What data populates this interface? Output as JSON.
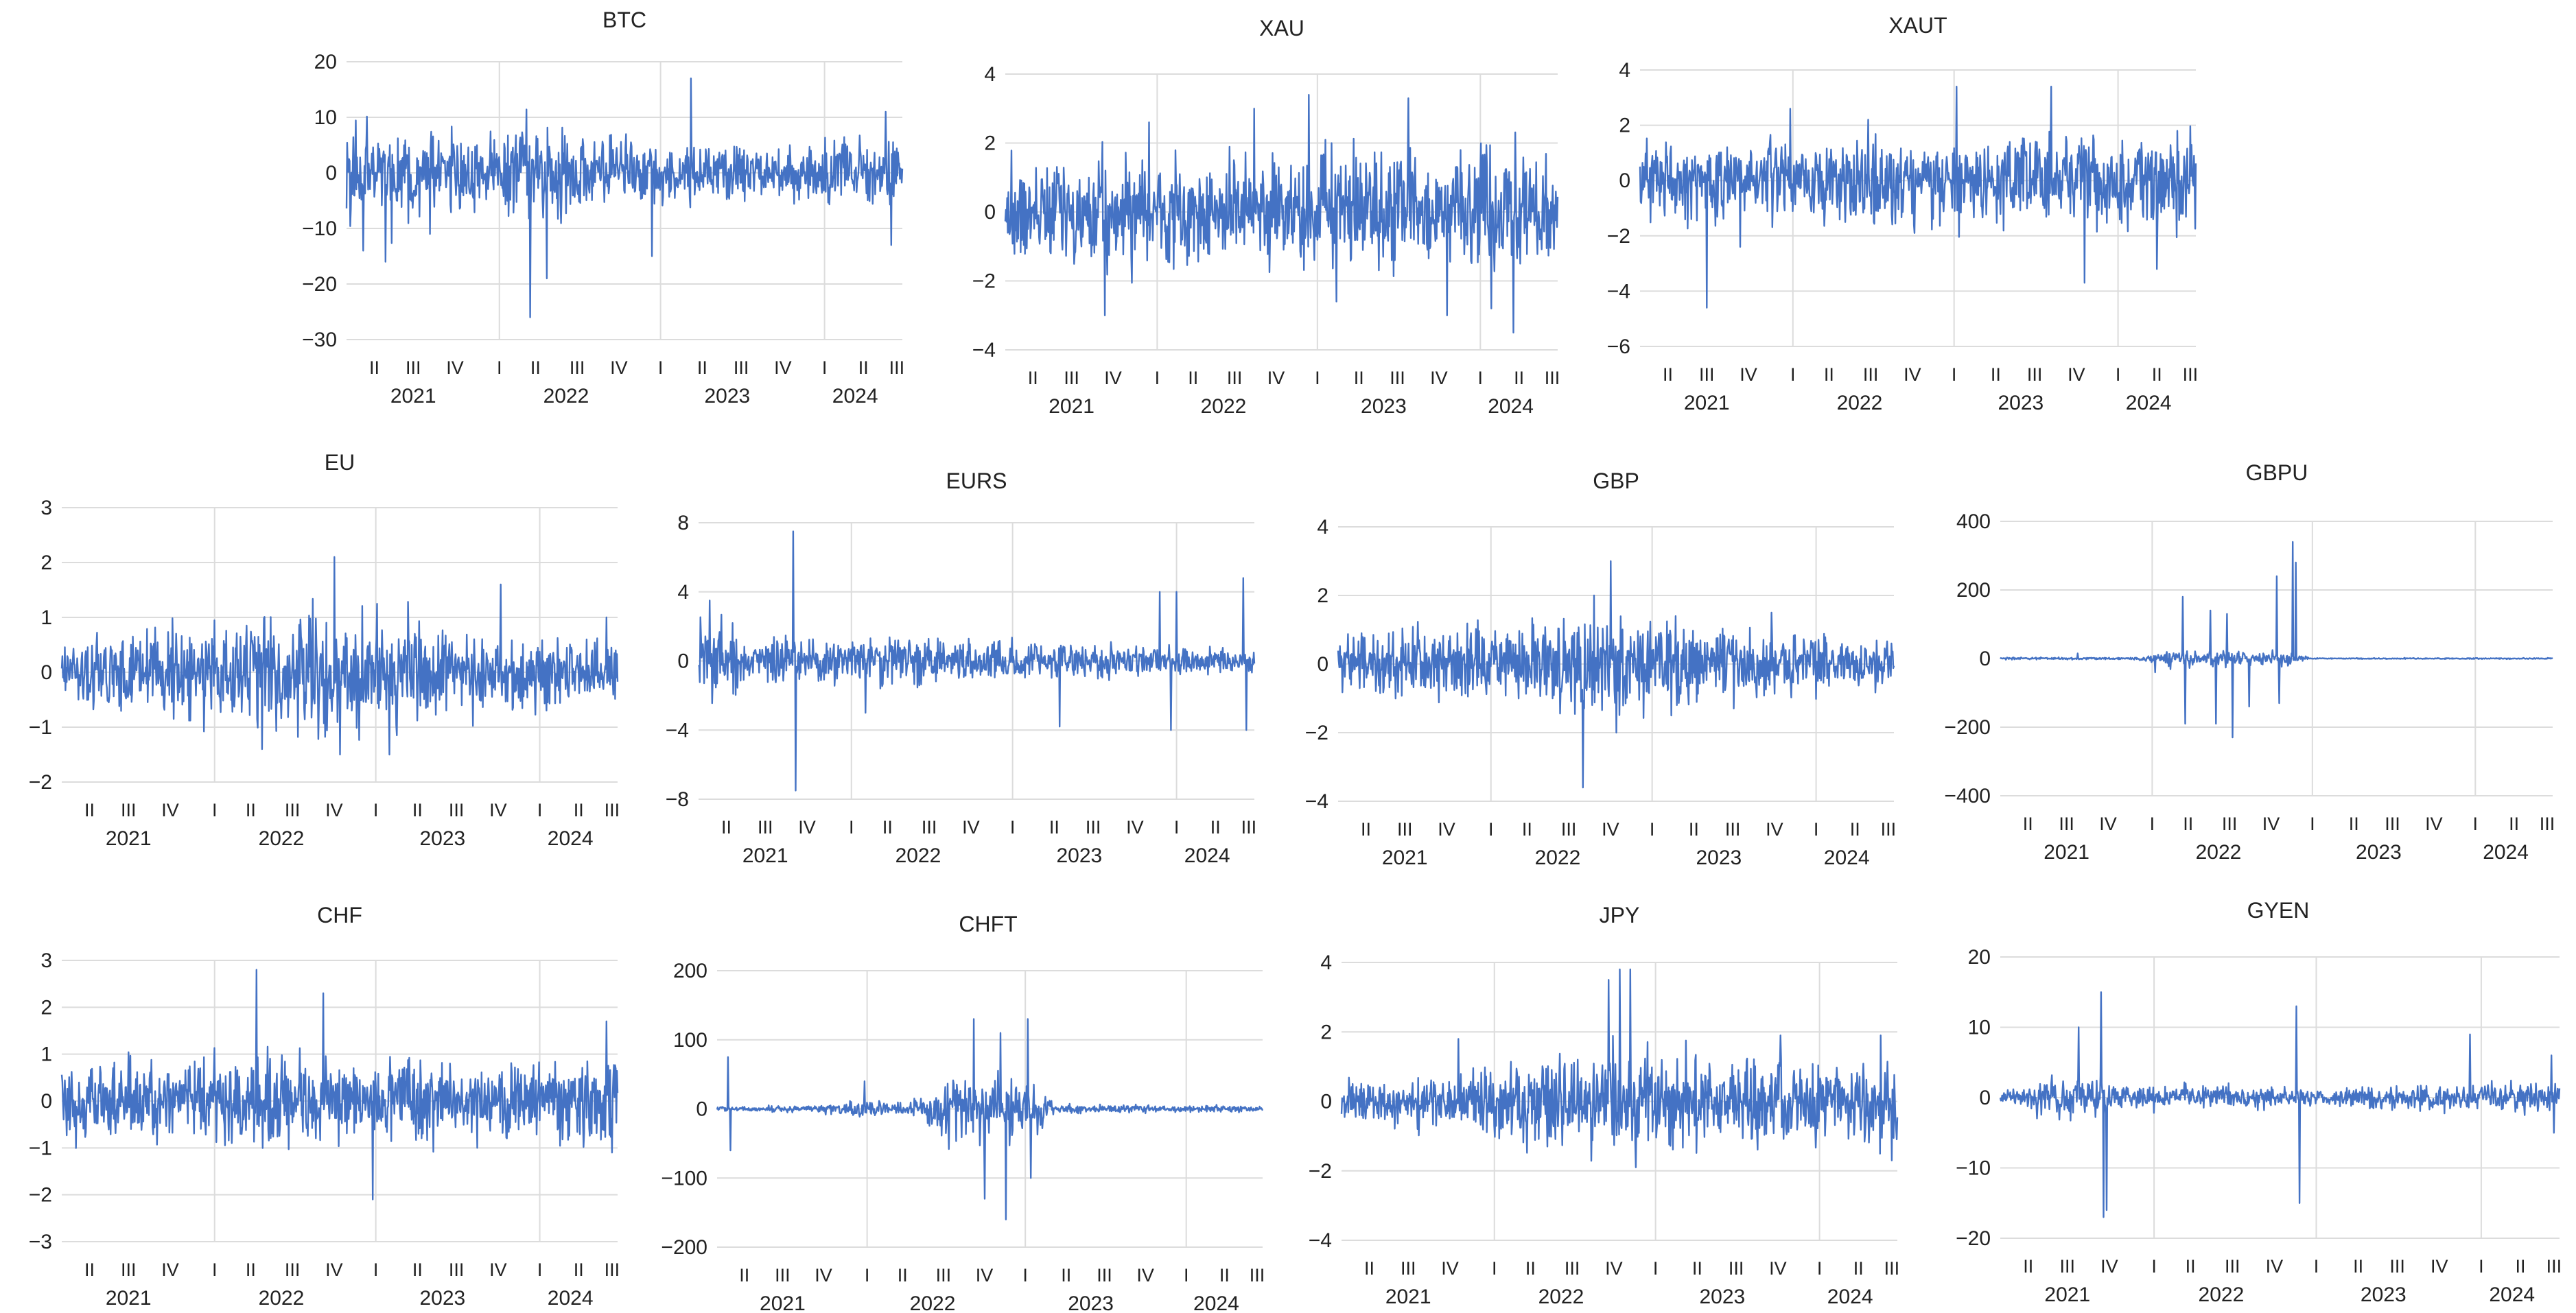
{
  "chart_data": [
    {
      "type": "line",
      "title": "BTC",
      "ylim": [
        -30,
        20
      ],
      "yticks": [
        "20",
        "10",
        "0",
        "−10",
        "−20",
        "−30"
      ],
      "quarters": [
        "II",
        "III",
        "IV",
        "I",
        "II",
        "III",
        "IV",
        "I",
        "II",
        "III",
        "IV",
        "I",
        "II",
        "III"
      ],
      "years": [
        "2021",
        "2022",
        "2023",
        "2024"
      ],
      "axis_color": "#4472c4",
      "grid": true,
      "profile": [
        {
          "at": 0.0,
          "amp": 5.5
        },
        {
          "at": 0.1,
          "amp": 6
        },
        {
          "at": 0.25,
          "amp": 5
        },
        {
          "at": 0.33,
          "amp": 7
        },
        {
          "at": 0.45,
          "amp": 4.5
        },
        {
          "at": 0.6,
          "amp": 3.5
        },
        {
          "at": 0.75,
          "amp": 3
        },
        {
          "at": 0.9,
          "amp": 4
        },
        {
          "at": 1.0,
          "amp": 4.5
        }
      ],
      "spikes": [
        {
          "at": 0.03,
          "y": -14
        },
        {
          "at": 0.07,
          "y": -16
        },
        {
          "at": 0.15,
          "y": -11
        },
        {
          "at": 0.33,
          "y": -26
        },
        {
          "at": 0.36,
          "y": -19
        },
        {
          "at": 0.55,
          "y": -15
        },
        {
          "at": 0.62,
          "y": 17
        },
        {
          "at": 0.98,
          "y": -13
        },
        {
          "at": 0.97,
          "y": 11
        }
      ]
    },
    {
      "type": "line",
      "title": "XAU",
      "ylim": [
        -4,
        4
      ],
      "yticks": [
        "4",
        "2",
        "0",
        "−2",
        "−4"
      ],
      "quarters": [
        "II",
        "III",
        "IV",
        "I",
        "II",
        "III",
        "IV",
        "I",
        "II",
        "III",
        "IV",
        "I",
        "II",
        "III"
      ],
      "years": [
        "2021",
        "2022",
        "2023",
        "2024"
      ],
      "axis_color": "#4472c4",
      "grid": true,
      "profile": [
        {
          "at": 0.0,
          "amp": 0.9
        },
        {
          "at": 0.2,
          "amp": 1.0
        },
        {
          "at": 0.4,
          "amp": 1.0
        },
        {
          "at": 0.6,
          "amp": 1.1
        },
        {
          "at": 0.8,
          "amp": 1.0
        },
        {
          "at": 1.0,
          "amp": 1.2
        }
      ],
      "spikes": [
        {
          "at": 0.18,
          "y": -3
        },
        {
          "at": 0.26,
          "y": 2.6
        },
        {
          "at": 0.45,
          "y": 3
        },
        {
          "at": 0.55,
          "y": 3.4
        },
        {
          "at": 0.6,
          "y": -2.6
        },
        {
          "at": 0.73,
          "y": 3.3
        },
        {
          "at": 0.88,
          "y": -2.8
        },
        {
          "at": 0.92,
          "y": -3.5
        },
        {
          "at": 0.8,
          "y": -3
        }
      ]
    },
    {
      "type": "line",
      "title": "XAUT",
      "ylim": [
        -6,
        4
      ],
      "yticks": [
        "4",
        "2",
        "0",
        "−2",
        "−4",
        "−6"
      ],
      "quarters": [
        "II",
        "III",
        "IV",
        "I",
        "II",
        "III",
        "IV",
        "I",
        "II",
        "III",
        "IV",
        "I",
        "II",
        "III"
      ],
      "years": [
        "2021",
        "2022",
        "2023",
        "2024"
      ],
      "axis_color": "#4472c4",
      "grid": true,
      "profile": [
        {
          "at": 0.0,
          "amp": 0.9
        },
        {
          "at": 0.3,
          "amp": 0.9
        },
        {
          "at": 0.5,
          "amp": 1.0
        },
        {
          "at": 0.7,
          "amp": 1.1
        },
        {
          "at": 1.0,
          "amp": 1.1
        }
      ],
      "spikes": [
        {
          "at": 0.12,
          "y": -4.6
        },
        {
          "at": 0.18,
          "y": -2.4
        },
        {
          "at": 0.27,
          "y": 2.6
        },
        {
          "at": 0.41,
          "y": 2.2
        },
        {
          "at": 0.57,
          "y": 3.4
        },
        {
          "at": 0.74,
          "y": 3.4
        },
        {
          "at": 0.8,
          "y": -3.7
        },
        {
          "at": 0.93,
          "y": -3.2
        }
      ]
    },
    {
      "type": "line",
      "title": "EU",
      "ylim": [
        -2,
        3
      ],
      "yticks": [
        "3",
        "2",
        "1",
        "0",
        "−1",
        "−2"
      ],
      "quarters": [
        "II",
        "III",
        "IV",
        "I",
        "II",
        "III",
        "IV",
        "I",
        "II",
        "III",
        "IV",
        "I",
        "II",
        "III"
      ],
      "years": [
        "2021",
        "2022",
        "2023",
        "2024"
      ],
      "axis_color": "#4472c4",
      "grid": true,
      "profile": [
        {
          "at": 0.0,
          "amp": 0.4
        },
        {
          "at": 0.2,
          "amp": 0.5
        },
        {
          "at": 0.4,
          "amp": 0.7
        },
        {
          "at": 0.55,
          "amp": 0.7
        },
        {
          "at": 0.7,
          "amp": 0.5
        },
        {
          "at": 1.0,
          "amp": 0.35
        }
      ],
      "spikes": [
        {
          "at": 0.36,
          "y": -1.4
        },
        {
          "at": 0.49,
          "y": 2.1
        },
        {
          "at": 0.5,
          "y": -1.5
        },
        {
          "at": 0.59,
          "y": -1.5
        },
        {
          "at": 0.79,
          "y": 1.6
        },
        {
          "at": 0.98,
          "y": 1.0
        }
      ]
    },
    {
      "type": "line",
      "title": "EURS",
      "ylim": [
        -8,
        8
      ],
      "yticks": [
        "8",
        "4",
        "0",
        "−4",
        "−8"
      ],
      "quarters": [
        "II",
        "III",
        "IV",
        "I",
        "II",
        "III",
        "IV",
        "I",
        "II",
        "III",
        "IV",
        "I",
        "II",
        "III"
      ],
      "years": [
        "2021",
        "2022",
        "2023",
        "2024"
      ],
      "axis_color": "#4472c4",
      "grid": true,
      "profile": [
        {
          "at": 0.0,
          "amp": 1.5
        },
        {
          "at": 0.15,
          "amp": 0.8
        },
        {
          "at": 0.35,
          "amp": 0.9
        },
        {
          "at": 0.6,
          "amp": 0.7
        },
        {
          "at": 1.0,
          "amp": 0.5
        }
      ],
      "spikes": [
        {
          "at": 0.02,
          "y": 3.5
        },
        {
          "at": 0.17,
          "y": 7.5
        },
        {
          "at": 0.175,
          "y": -7.5
        },
        {
          "at": 0.3,
          "y": -3
        },
        {
          "at": 0.65,
          "y": -3.8
        },
        {
          "at": 0.83,
          "y": 4
        },
        {
          "at": 0.85,
          "y": -4
        },
        {
          "at": 0.86,
          "y": 4
        },
        {
          "at": 0.98,
          "y": 4.8
        },
        {
          "at": 0.985,
          "y": -4
        }
      ]
    },
    {
      "type": "line",
      "title": "GBP",
      "ylim": [
        -4,
        4
      ],
      "yticks": [
        "4",
        "2",
        "0",
        "−2",
        "−4"
      ],
      "quarters": [
        "II",
        "III",
        "IV",
        "I",
        "II",
        "III",
        "IV",
        "I",
        "II",
        "III",
        "IV",
        "I",
        "II",
        "III"
      ],
      "years": [
        "2021",
        "2022",
        "2023",
        "2024"
      ],
      "axis_color": "#4472c4",
      "grid": true,
      "profile": [
        {
          "at": 0.0,
          "amp": 0.6
        },
        {
          "at": 0.3,
          "amp": 0.7
        },
        {
          "at": 0.45,
          "amp": 1.0
        },
        {
          "at": 0.6,
          "amp": 0.7
        },
        {
          "at": 1.0,
          "amp": 0.5
        }
      ],
      "spikes": [
        {
          "at": 0.44,
          "y": -3.6
        },
        {
          "at": 0.46,
          "y": 2
        },
        {
          "at": 0.49,
          "y": 3
        },
        {
          "at": 0.5,
          "y": -2
        },
        {
          "at": 0.78,
          "y": 1.5
        },
        {
          "at": 0.6,
          "y": -1.5
        }
      ]
    },
    {
      "type": "line",
      "title": "GBPU",
      "ylim": [
        -400,
        400
      ],
      "yticks": [
        "400",
        "200",
        "0",
        "−200",
        "−400"
      ],
      "quarters": [
        "II",
        "III",
        "IV",
        "I",
        "II",
        "III",
        "IV",
        "I",
        "II",
        "III",
        "IV",
        "I",
        "II",
        "III"
      ],
      "years": [
        "2021",
        "2022",
        "2023",
        "2024"
      ],
      "axis_color": "#4472c4",
      "grid": true,
      "profile": [
        {
          "at": 0.0,
          "amp": 2
        },
        {
          "at": 0.25,
          "amp": 2
        },
        {
          "at": 0.3,
          "amp": 15
        },
        {
          "at": 0.52,
          "amp": 15
        },
        {
          "at": 0.56,
          "amp": 1
        },
        {
          "at": 1.0,
          "amp": 1
        }
      ],
      "spikes": [
        {
          "at": 0.14,
          "y": 15
        },
        {
          "at": 0.28,
          "y": -40
        },
        {
          "at": 0.33,
          "y": 180
        },
        {
          "at": 0.335,
          "y": -190
        },
        {
          "at": 0.38,
          "y": 140
        },
        {
          "at": 0.39,
          "y": -190
        },
        {
          "at": 0.41,
          "y": 130
        },
        {
          "at": 0.42,
          "y": -230
        },
        {
          "at": 0.45,
          "y": -140
        },
        {
          "at": 0.5,
          "y": 240
        },
        {
          "at": 0.505,
          "y": -130
        },
        {
          "at": 0.53,
          "y": 340
        },
        {
          "at": 0.535,
          "y": 280
        }
      ]
    },
    {
      "type": "line",
      "title": "CHF",
      "ylim": [
        -3,
        3
      ],
      "yticks": [
        "3",
        "2",
        "1",
        "0",
        "−1",
        "−2",
        "−3"
      ],
      "quarters": [
        "II",
        "III",
        "IV",
        "I",
        "II",
        "III",
        "IV",
        "I",
        "II",
        "III",
        "IV",
        "I",
        "II",
        "III"
      ],
      "years": [
        "2021",
        "2022",
        "2023",
        "2024"
      ],
      "axis_color": "#4472c4",
      "grid": true,
      "profile": [
        {
          "at": 0.0,
          "amp": 0.5
        },
        {
          "at": 0.3,
          "amp": 0.6
        },
        {
          "at": 0.5,
          "amp": 0.6
        },
        {
          "at": 0.7,
          "amp": 0.55
        },
        {
          "at": 1.0,
          "amp": 0.6
        }
      ],
      "spikes": [
        {
          "at": 0.35,
          "y": 2.8
        },
        {
          "at": 0.47,
          "y": 2.3
        },
        {
          "at": 0.56,
          "y": -2.1
        },
        {
          "at": 0.98,
          "y": 1.7
        },
        {
          "at": 0.99,
          "y": -1.1
        }
      ]
    },
    {
      "type": "line",
      "title": "CHFT",
      "ylim": [
        -200,
        200
      ],
      "yticks": [
        "200",
        "100",
        "0",
        "−100",
        "−200"
      ],
      "quarters": [
        "II",
        "III",
        "IV",
        "I",
        "II",
        "III",
        "IV",
        "I",
        "II",
        "III",
        "IV",
        "I",
        "II",
        "III"
      ],
      "years": [
        "2021",
        "2022",
        "2023",
        "2024"
      ],
      "axis_color": "#4472c4",
      "grid": true,
      "profile": [
        {
          "at": 0.0,
          "amp": 2
        },
        {
          "at": 0.18,
          "amp": 3
        },
        {
          "at": 0.25,
          "amp": 10
        },
        {
          "at": 0.35,
          "amp": 5
        },
        {
          "at": 0.42,
          "amp": 30
        },
        {
          "at": 0.58,
          "amp": 30
        },
        {
          "at": 0.62,
          "amp": 4
        },
        {
          "at": 1.0,
          "amp": 3
        }
      ],
      "spikes": [
        {
          "at": 0.02,
          "y": 75
        },
        {
          "at": 0.025,
          "y": -60
        },
        {
          "at": 0.27,
          "y": 40
        },
        {
          "at": 0.47,
          "y": 130
        },
        {
          "at": 0.49,
          "y": -130
        },
        {
          "at": 0.52,
          "y": 110
        },
        {
          "at": 0.53,
          "y": -160
        },
        {
          "at": 0.57,
          "y": 130
        },
        {
          "at": 0.575,
          "y": -100
        }
      ]
    },
    {
      "type": "line",
      "title": "JPY",
      "ylim": [
        -4,
        4
      ],
      "yticks": [
        "4",
        "2",
        "0",
        "−2",
        "−4"
      ],
      "quarters": [
        "II",
        "III",
        "IV",
        "I",
        "II",
        "III",
        "IV",
        "I",
        "II",
        "III",
        "IV",
        "I",
        "II",
        "III"
      ],
      "years": [
        "2021",
        "2022",
        "2023",
        "2024"
      ],
      "axis_color": "#4472c4",
      "grid": true,
      "profile": [
        {
          "at": 0.0,
          "amp": 0.4
        },
        {
          "at": 0.2,
          "amp": 0.5
        },
        {
          "at": 0.4,
          "amp": 0.9
        },
        {
          "at": 0.5,
          "amp": 1.1
        },
        {
          "at": 0.7,
          "amp": 0.7
        },
        {
          "at": 1.0,
          "amp": 0.8
        }
      ],
      "spikes": [
        {
          "at": 0.21,
          "y": 1.8
        },
        {
          "at": 0.48,
          "y": 3.5
        },
        {
          "at": 0.5,
          "y": 3.8
        },
        {
          "at": 0.52,
          "y": 3.8
        },
        {
          "at": 0.53,
          "y": -1.9
        },
        {
          "at": 0.79,
          "y": 1.9
        },
        {
          "at": 0.97,
          "y": 1.9
        },
        {
          "at": 0.99,
          "y": -1.7
        }
      ]
    },
    {
      "type": "line",
      "title": "GYEN",
      "ylim": [
        -20,
        20
      ],
      "yticks": [
        "20",
        "10",
        "0",
        "−10",
        "−20"
      ],
      "quarters": [
        "II",
        "III",
        "IV",
        "I",
        "II",
        "III",
        "IV",
        "I",
        "II",
        "III",
        "IV",
        "I",
        "II",
        "III"
      ],
      "years": [
        "2021",
        "2022",
        "2023",
        "2024"
      ],
      "axis_color": "#4472c4",
      "grid": true,
      "profile": [
        {
          "at": 0.0,
          "amp": 0.6
        },
        {
          "at": 0.15,
          "amp": 2.5
        },
        {
          "at": 0.2,
          "amp": 1.2
        },
        {
          "at": 0.55,
          "amp": 0.8
        },
        {
          "at": 0.75,
          "amp": 1.2
        },
        {
          "at": 1.0,
          "amp": 1.5
        }
      ],
      "spikes": [
        {
          "at": 0.14,
          "y": 10
        },
        {
          "at": 0.18,
          "y": 15
        },
        {
          "at": 0.185,
          "y": -17
        },
        {
          "at": 0.19,
          "y": -16
        },
        {
          "at": 0.53,
          "y": 13
        },
        {
          "at": 0.535,
          "y": -15
        },
        {
          "at": 0.84,
          "y": 9
        },
        {
          "at": 0.99,
          "y": -5
        },
        {
          "at": 0.985,
          "y": 6
        }
      ]
    }
  ]
}
